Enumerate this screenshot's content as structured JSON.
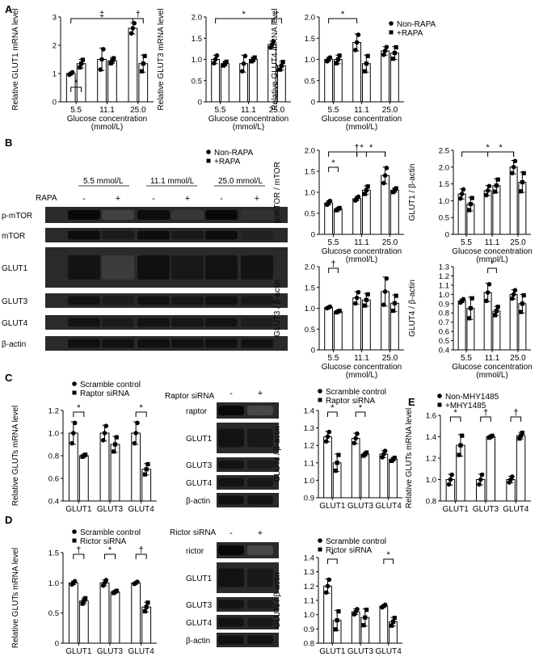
{
  "panels": {
    "A": "A",
    "B": "B",
    "C": "C",
    "D": "D",
    "E": "E"
  },
  "legend": {
    "non_rapa": "Non-RAPA",
    "rapa": "+RAPA",
    "scramble": "Scramble control",
    "raptor": "Raptor siRNA",
    "rictor": "Rictor siRNA",
    "non_mhy": "Non-MHY1485",
    "mhy": "+MHY1485"
  },
  "axis_text": {
    "glucose_xlabel_1": "Glucose concentration",
    "glucose_xlabel_2": "(mmol/L)"
  },
  "blot": {
    "B": {
      "conc_headers": [
        "5.5 mmol/L",
        "11.1 mmol/L",
        "25.0 mmol/L"
      ],
      "rapa_label": "RAPA",
      "rapa_signs": [
        "-",
        "+",
        "-",
        "+",
        "-",
        "+"
      ],
      "proteins": [
        "p-mTOR",
        "mTOR",
        "GLUT1",
        "GLUT3",
        "GLUT4",
        "β-actin"
      ]
    },
    "C": {
      "sirna_label": "Raptor siRNA",
      "signs": [
        "-",
        "+"
      ],
      "proteins": [
        "raptor",
        "GLUT1",
        "GLUT3",
        "GLUT4",
        "β-actin"
      ]
    },
    "D": {
      "sirna_label": "Rictor siRNA",
      "signs": [
        "-",
        "+"
      ],
      "proteins": [
        "rictor",
        "GLUT1",
        "GLUT3",
        "GLUT4",
        "β-actin"
      ]
    }
  },
  "chart_data": [
    {
      "id": "A1",
      "type": "bar",
      "ylabel": "Relative GLUT1 mRNA level",
      "ylim": [
        0,
        3
      ],
      "yticks": [
        "0",
        "1",
        "2",
        "3"
      ],
      "categories": [
        "5.5",
        "11.1",
        "25.0"
      ],
      "series": [
        {
          "name": "Non-RAPA",
          "values": [
            1.0,
            1.5,
            2.6
          ],
          "err": [
            0.05,
            0.4,
            0.2
          ]
        },
        {
          "name": "+RAPA",
          "values": [
            1.35,
            1.45,
            1.35
          ],
          "err": [
            0.15,
            0.1,
            0.3
          ]
        }
      ],
      "annotations": [
        "*",
        "‡",
        "†"
      ]
    },
    {
      "id": "A2",
      "type": "bar",
      "ylabel": "Relative GLUT3 mRNA level",
      "ylim": [
        0,
        2
      ],
      "yticks": [
        "0",
        "0.5",
        "1.0",
        "1.5",
        "2.0"
      ],
      "categories": [
        "5.5",
        "11.1",
        "25.0"
      ],
      "series": [
        {
          "name": "Non-RAPA",
          "values": [
            1.0,
            0.9,
            1.35
          ],
          "err": [
            0.1,
            0.2,
            0.08
          ]
        },
        {
          "name": "+RAPA",
          "values": [
            0.9,
            1.0,
            0.85
          ],
          "err": [
            0.05,
            0.05,
            0.1
          ]
        }
      ],
      "annotations": [
        "*",
        "†"
      ]
    },
    {
      "id": "A3",
      "type": "bar",
      "ylabel": "Relative GLUT4 mRNA level",
      "ylim": [
        0,
        2
      ],
      "yticks": [
        "0",
        "0.5",
        "1.0",
        "1.5",
        "2.0"
      ],
      "categories": [
        "5.5",
        "11.1",
        "25.0"
      ],
      "series": [
        {
          "name": "Non-RAPA",
          "values": [
            1.0,
            1.4,
            1.2
          ],
          "err": [
            0.05,
            0.2,
            0.1
          ]
        },
        {
          "name": "+RAPA",
          "values": [
            1.0,
            0.9,
            1.15
          ],
          "err": [
            0.1,
            0.2,
            0.15
          ]
        }
      ],
      "annotations": [
        "*"
      ]
    },
    {
      "id": "B1",
      "type": "bar",
      "ylabel": "p-mTOR / mTOR",
      "ylim": [
        0,
        2
      ],
      "yticks": [
        "0",
        "0.5",
        "1.0",
        "1.5",
        "2.0"
      ],
      "categories": [
        "5.5",
        "11.1",
        "25.0"
      ],
      "series": [
        {
          "name": "Non-RAPA",
          "values": [
            0.75,
            0.85,
            1.4
          ],
          "err": [
            0.05,
            0.05,
            0.2
          ]
        },
        {
          "name": "+RAPA",
          "values": [
            0.6,
            1.05,
            1.05
          ],
          "err": [
            0.03,
            0.1,
            0.05
          ]
        }
      ],
      "annotations": [
        "*",
        "*",
        "*",
        "†"
      ]
    },
    {
      "id": "B2",
      "type": "bar",
      "ylabel": "GLUT1 / β-actin",
      "ylim": [
        0,
        2.5
      ],
      "yticks": [
        "0",
        "0.5",
        "1.0",
        "1.5",
        "2.0",
        "2.5"
      ],
      "categories": [
        "5.5",
        "11.1",
        "25.0"
      ],
      "series": [
        {
          "name": "Non-RAPA",
          "values": [
            1.2,
            1.3,
            2.0
          ],
          "err": [
            0.15,
            0.15,
            0.2
          ]
        },
        {
          "name": "+RAPA",
          "values": [
            0.9,
            1.45,
            1.55
          ],
          "err": [
            0.2,
            0.2,
            0.3
          ]
        }
      ],
      "annotations": [
        "*",
        "*"
      ]
    },
    {
      "id": "B3",
      "type": "bar",
      "ylabel": "GLUT3 / β-actin",
      "ylim": [
        0,
        2
      ],
      "yticks": [
        "0",
        "0.5",
        "1.0",
        "1.5",
        "2.0"
      ],
      "categories": [
        "5.5",
        "11.1",
        "25.0"
      ],
      "series": [
        {
          "name": "Non-RAPA",
          "values": [
            1.02,
            1.25,
            1.4
          ],
          "err": [
            0.02,
            0.15,
            0.35
          ]
        },
        {
          "name": "+RAPA",
          "values": [
            0.92,
            1.2,
            1.12
          ],
          "err": [
            0.02,
            0.15,
            0.2
          ]
        }
      ],
      "annotations": [
        "†"
      ]
    },
    {
      "id": "B4",
      "type": "bar",
      "ylabel": "GLUT4 / β-actin",
      "ylim": [
        0.4,
        1.3
      ],
      "yticks": [
        "0.4",
        "0.5",
        "0.6",
        "0.7",
        "0.8",
        "0.9",
        "1.0",
        "1.1",
        "1.2",
        "1.3"
      ],
      "categories": [
        "5.5",
        "11.1",
        "25.0"
      ],
      "series": [
        {
          "name": "Non-RAPA",
          "values": [
            0.93,
            1.02,
            1.0
          ],
          "err": [
            0.02,
            0.1,
            0.05
          ]
        },
        {
          "name": "+RAPA",
          "values": [
            0.85,
            0.82,
            0.9
          ],
          "err": [
            0.12,
            0.05,
            0.1
          ]
        }
      ],
      "annotations": [
        "*"
      ]
    },
    {
      "id": "C1",
      "type": "bar",
      "ylabel": "Relative GLUTs mRNA level",
      "ylim": [
        0.4,
        1.2
      ],
      "yticks": [
        "0.4",
        "0.6",
        "0.8",
        "1.0",
        "1.2"
      ],
      "categories": [
        "GLUT1",
        "GLUT3",
        "GLUT4"
      ],
      "series": [
        {
          "name": "Scramble control",
          "values": [
            1.0,
            1.0,
            1.0
          ],
          "err": [
            0.1,
            0.07,
            0.1
          ]
        },
        {
          "name": "Raptor siRNA",
          "values": [
            0.8,
            0.9,
            0.68
          ],
          "err": [
            0.01,
            0.07,
            0.05
          ]
        }
      ],
      "annotations": [
        "*",
        "*"
      ]
    },
    {
      "id": "C2",
      "type": "bar",
      "ylabel": "GLUTs / β-actin",
      "ylim": [
        0.9,
        1.4
      ],
      "yticks": [
        "0.9",
        "1.0",
        "1.1",
        "1.2",
        "1.3",
        "1.4"
      ],
      "categories": [
        "GLUT1",
        "GLUT3",
        "GLUT4"
      ],
      "series": [
        {
          "name": "Scramble control",
          "values": [
            1.25,
            1.24,
            1.15
          ],
          "err": [
            0.03,
            0.03,
            0.02
          ]
        },
        {
          "name": "Raptor siRNA",
          "values": [
            1.1,
            1.15,
            1.12
          ],
          "err": [
            0.05,
            0.01,
            0.01
          ]
        }
      ],
      "annotations": [
        "*",
        "*"
      ]
    },
    {
      "id": "D1",
      "type": "bar",
      "ylabel": "Relative GLUTs mRNA level",
      "ylim": [
        0,
        1.5
      ],
      "yticks": [
        "0",
        "0.5",
        "1.0",
        "1.5"
      ],
      "categories": [
        "GLUT1",
        "GLUT3",
        "GLUT4"
      ],
      "series": [
        {
          "name": "Scramble control",
          "values": [
            1.0,
            1.0,
            1.0
          ],
          "err": [
            0.03,
            0.05,
            0.02
          ]
        },
        {
          "name": "Rictor siRNA",
          "values": [
            0.7,
            0.85,
            0.6
          ],
          "err": [
            0.05,
            0.02,
            0.08
          ]
        }
      ],
      "annotations": [
        "†",
        "*",
        "†"
      ]
    },
    {
      "id": "D2",
      "type": "bar",
      "ylabel": "GLUTs / β-actin",
      "ylim": [
        0.8,
        1.4
      ],
      "yticks": [
        "0.8",
        "0.9",
        "1.0",
        "1.1",
        "1.2",
        "1.3",
        "1.4"
      ],
      "categories": [
        "GLUT1",
        "GLUT3",
        "GLUT4"
      ],
      "series": [
        {
          "name": "Scramble control",
          "values": [
            1.2,
            1.02,
            1.06
          ],
          "err": [
            0.05,
            0.02,
            0.01
          ]
        },
        {
          "name": "Rictor siRNA",
          "values": [
            0.96,
            0.98,
            0.95
          ],
          "err": [
            0.07,
            0.06,
            0.03
          ]
        }
      ],
      "annotations": [
        "*",
        "*"
      ]
    },
    {
      "id": "E1",
      "type": "bar",
      "ylabel": "Relative GLUTs mRNA level",
      "ylim": [
        0.8,
        1.6
      ],
      "yticks": [
        "0.8",
        "1.0",
        "1.2",
        "1.4",
        "1.6"
      ],
      "categories": [
        "GLUT1",
        "GLUT3",
        "GLUT4"
      ],
      "series": [
        {
          "name": "Non-MHY1485",
          "values": [
            1.0,
            1.0,
            1.0
          ],
          "err": [
            0.05,
            0.05,
            0.03
          ]
        },
        {
          "name": "+MHY1485",
          "values": [
            1.32,
            1.4,
            1.41
          ],
          "err": [
            0.1,
            0.01,
            0.03
          ]
        }
      ],
      "annotations": [
        "*",
        "†",
        "†"
      ]
    }
  ]
}
